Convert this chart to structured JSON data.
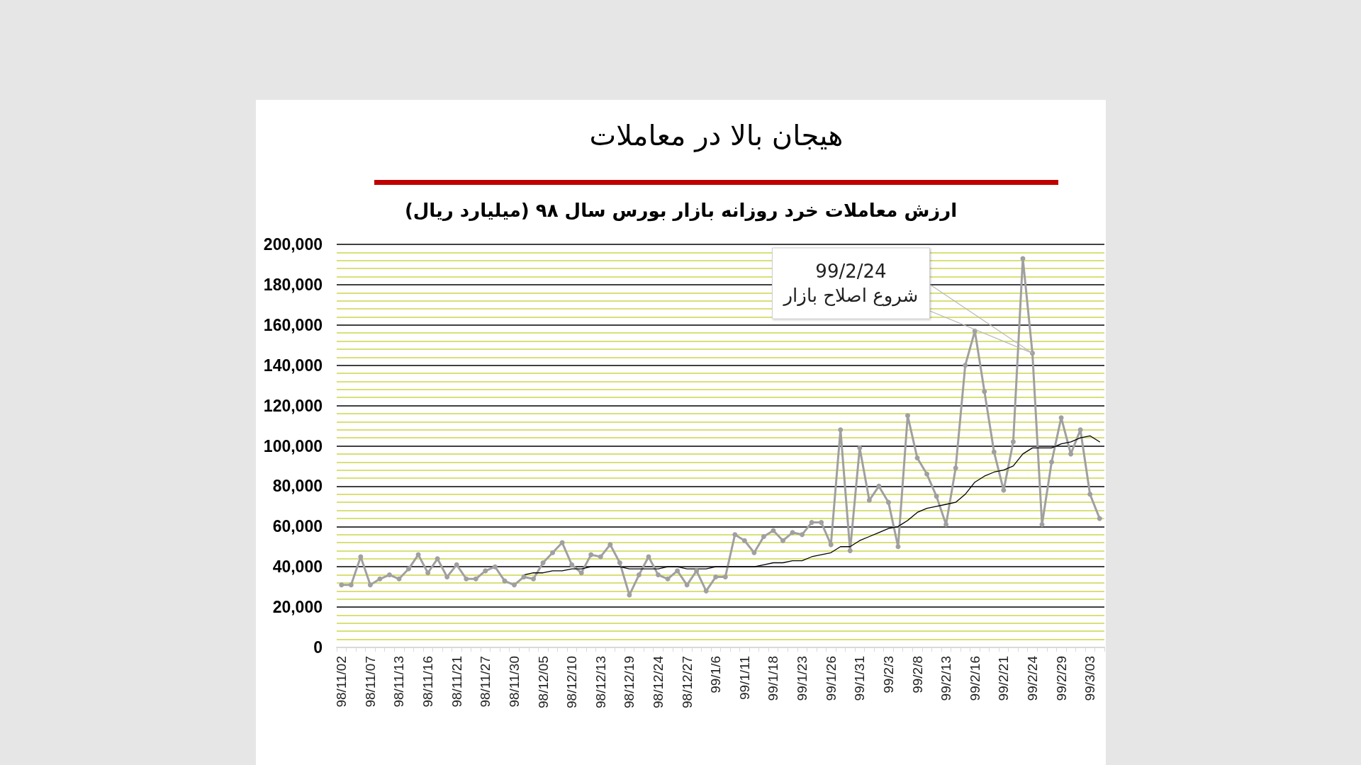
{
  "chart_data": {
    "type": "line",
    "title": "هیجان بالا در معاملات",
    "subtitle": "ارزش معاملات خرد روزانه بازار بورس سال ۹۸ (میلیارد ریال)",
    "categories": [
      "98/11/02",
      null,
      null,
      "98/11/07",
      null,
      null,
      "98/11/13",
      null,
      null,
      "98/11/16",
      null,
      null,
      "98/11/21",
      null,
      null,
      "98/11/27",
      null,
      null,
      "98/11/30",
      null,
      null,
      "98/12/05",
      null,
      null,
      "98/12/10",
      null,
      null,
      "98/12/13",
      null,
      null,
      "98/12/19",
      null,
      null,
      "98/12/24",
      null,
      null,
      "98/12/27",
      null,
      null,
      "99/1/6",
      null,
      null,
      "99/1/11",
      null,
      null,
      "99/1/18",
      null,
      null,
      "99/1/23",
      null,
      null,
      "99/1/26",
      null,
      null,
      "99/1/31",
      null,
      null,
      "99/2/3",
      null,
      null,
      "99/2/8",
      null,
      null,
      "99/2/13",
      null,
      null,
      "99/2/16",
      null,
      null,
      "99/2/21",
      null,
      null,
      "99/2/24",
      null,
      null,
      "99/2/29",
      null,
      null,
      "99/3/03",
      null
    ],
    "series": [
      {
        "color": "#a0a0a0",
        "values": [
          31000,
          31000,
          45000,
          31000,
          34000,
          36000,
          34000,
          39000,
          46000,
          37000,
          44000,
          35000,
          41000,
          34000,
          34000,
          38000,
          40000,
          33000,
          31000,
          35000,
          34000,
          42000,
          47000,
          52000,
          41000,
          37000,
          46000,
          45000,
          51000,
          42000,
          26000,
          36000,
          45000,
          36000,
          34000,
          38000,
          31000,
          38000,
          28000,
          35000,
          35000,
          56000,
          53000,
          47000,
          55000,
          58000,
          53000,
          57000,
          56000,
          62000,
          62000,
          51000,
          108000,
          48000,
          99000,
          73000,
          80000,
          72000,
          50000,
          115000,
          94000,
          86000,
          75000,
          61000,
          89000,
          140000,
          157000,
          127000,
          97000,
          78000,
          102000,
          193000,
          146000,
          61000,
          92000,
          114000,
          96000,
          108000,
          76000,
          64000
        ]
      },
      {
        "color": "#000000",
        "marker": "none",
        "values": [
          null,
          null,
          null,
          null,
          null,
          null,
          null,
          null,
          null,
          null,
          null,
          null,
          null,
          null,
          null,
          null,
          null,
          null,
          null,
          36000,
          37000,
          37000,
          38000,
          38000,
          39000,
          39000,
          40000,
          40000,
          40000,
          40000,
          39000,
          39000,
          39000,
          39000,
          40000,
          40000,
          39000,
          39000,
          39000,
          40000,
          40000,
          40000,
          40000,
          40000,
          41000,
          42000,
          42000,
          43000,
          43000,
          45000,
          46000,
          47000,
          50000,
          50000,
          53000,
          55000,
          57000,
          59000,
          60000,
          63000,
          67000,
          69000,
          70000,
          71000,
          72000,
          76000,
          82000,
          85000,
          87000,
          88000,
          90000,
          96000,
          99000,
          99000,
          99000,
          101000,
          102000,
          104000,
          105000,
          102000
        ]
      }
    ],
    "ylim": [
      0,
      200000
    ],
    "yticks": [
      0,
      {
        "value": 4000,
        "label": null
      },
      {
        "value": 8000,
        "label": null
      },
      {
        "value": 12000,
        "label": null
      },
      {
        "value": 16000,
        "label": null
      },
      {
        "value": 20000,
        "label": "20,000"
      },
      {
        "value": 24000,
        "label": null
      },
      {
        "value": 28000,
        "label": null
      },
      {
        "value": 32000,
        "label": null
      },
      {
        "value": 36000,
        "label": null
      },
      {
        "value": 40000,
        "label": "40,000"
      },
      {
        "value": 44000,
        "label": null
      },
      {
        "value": 48000,
        "label": null
      },
      {
        "value": 52000,
        "label": null
      },
      {
        "value": 56000,
        "label": null
      },
      {
        "value": 60000,
        "label": "60,000"
      },
      {
        "value": 64000,
        "label": null
      },
      {
        "value": 68000,
        "label": null
      },
      {
        "value": 72000,
        "label": null
      },
      {
        "value": 76000,
        "label": null
      },
      {
        "value": 80000,
        "label": "80,000"
      },
      {
        "value": 84000,
        "label": null
      },
      {
        "value": 88000,
        "label": null
      },
      {
        "value": 92000,
        "label": null
      },
      {
        "value": 96000,
        "label": null
      },
      {
        "value": 100000,
        "label": "100,000"
      },
      {
        "value": 104000,
        "label": null
      },
      {
        "value": 108000,
        "label": null
      },
      {
        "value": 112000,
        "label": null
      },
      {
        "value": 116000,
        "label": null
      },
      {
        "value": 120000,
        "label": "120,000"
      },
      {
        "value": 124000,
        "label": null
      },
      {
        "value": 128000,
        "label": null
      },
      {
        "value": 132000,
        "label": null
      },
      {
        "value": 136000,
        "label": null
      },
      {
        "value": 140000,
        "label": "140,000"
      },
      {
        "value": 144000,
        "label": null
      },
      {
        "value": 148000,
        "label": null
      },
      {
        "value": 152000,
        "label": null
      },
      {
        "value": 156000,
        "label": null
      },
      {
        "value": 160000,
        "label": "160,000"
      },
      {
        "value": 164000,
        "label": null
      },
      {
        "value": 168000,
        "label": null
      },
      {
        "value": 172000,
        "label": null
      },
      {
        "value": 176000,
        "label": null
      },
      {
        "value": 180000,
        "label": "180,000"
      },
      {
        "value": 184000,
        "label": null
      },
      {
        "value": 188000,
        "label": null
      },
      {
        "value": 192000,
        "label": null
      },
      {
        "value": 196000,
        "label": null
      },
      {
        "value": 200000,
        "label": "200,000"
      }
    ],
    "grid": "y",
    "marker": "circle",
    "annotations": [
      {
        "text": "99/2/24\nشروع اصلاح بازار",
        "x": "99/2/24",
        "y": 146000
      }
    ]
  }
}
